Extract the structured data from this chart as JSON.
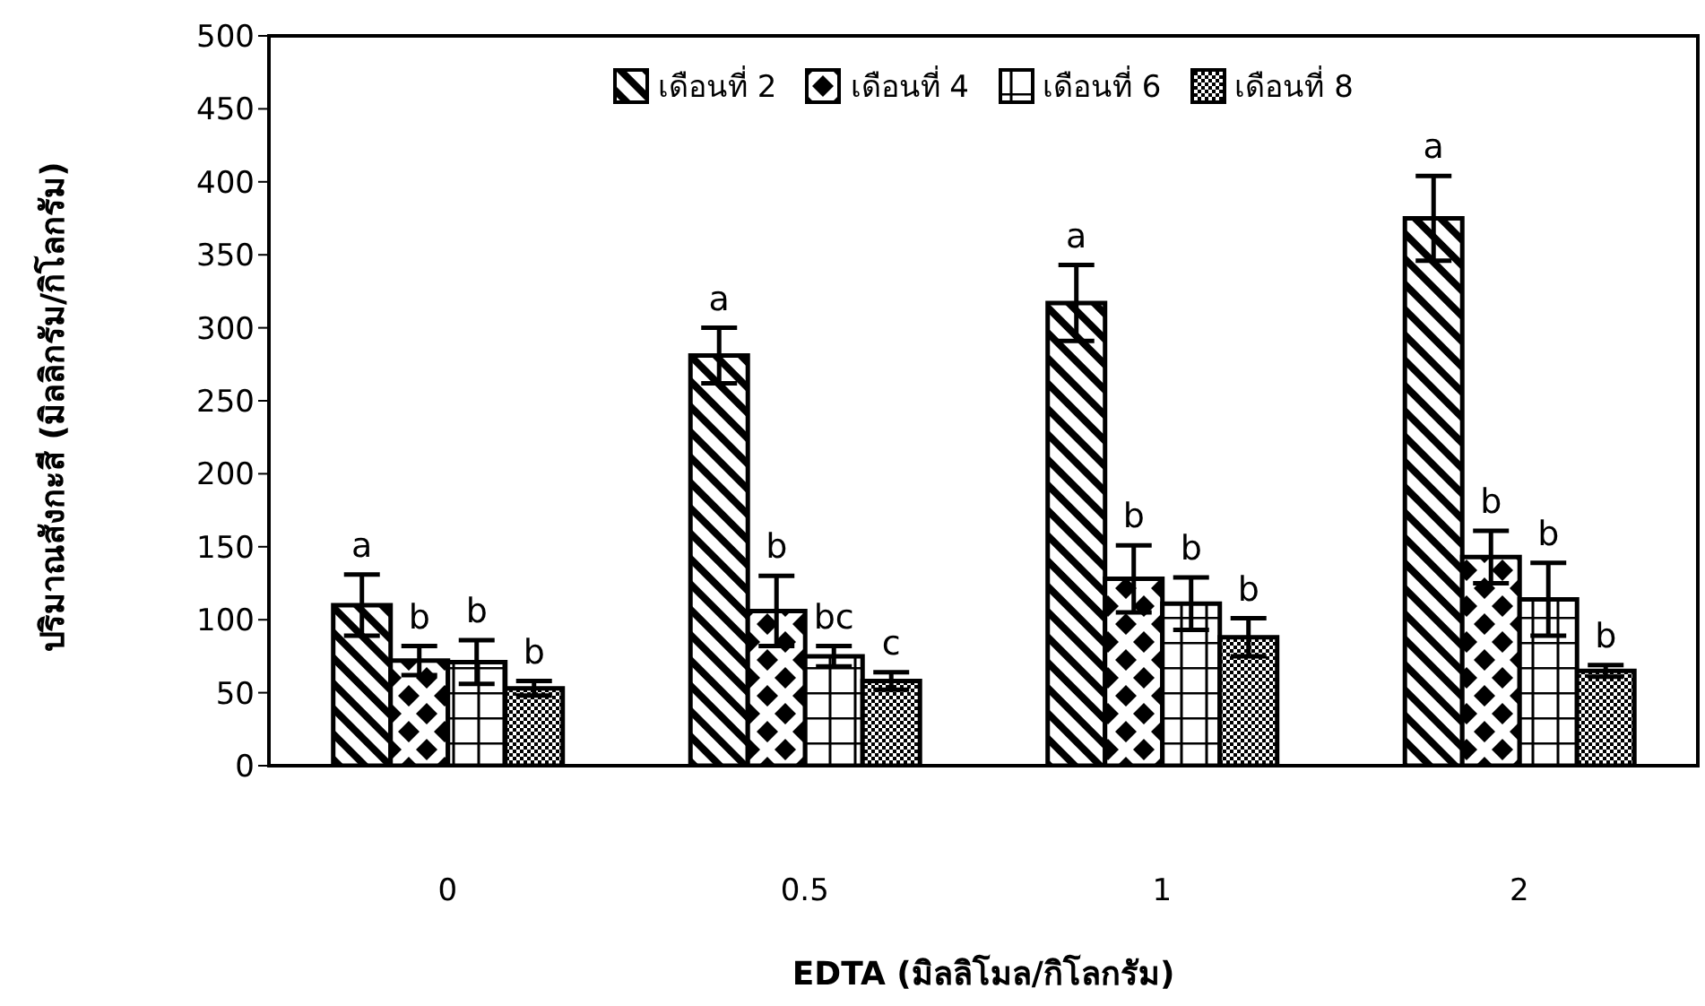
{
  "chart_data": {
    "type": "bar",
    "xlabel": "EDTA (มิลลิโมล/กิโลกรัม)",
    "ylabel": "ปริมาณสังกะสี (มิลลิกรัม/กิโลกรัม)",
    "categories": [
      "0",
      "0.5",
      "1",
      "2"
    ],
    "series": [
      {
        "name": "เดือนที่ 2",
        "color": "#000000",
        "values": [
          110,
          281,
          317,
          375
        ],
        "errors": [
          21,
          19,
          26,
          29
        ],
        "value_labels": [
          "a",
          "a",
          "a",
          "a"
        ]
      },
      {
        "name": "เดือนที่ 4",
        "color": "#000000",
        "values": [
          72,
          106,
          128,
          143
        ],
        "errors": [
          10,
          24,
          23,
          18
        ],
        "value_labels": [
          "b",
          "b",
          "b",
          "b"
        ]
      },
      {
        "name": "เดือนที่ 6",
        "color": "#000000",
        "values": [
          71,
          75,
          111,
          114
        ],
        "errors": [
          15,
          7,
          18,
          25
        ],
        "value_labels": [
          "b",
          "bc",
          "b",
          "b"
        ]
      },
      {
        "name": "เดือนที่ 8",
        "color": "#000000",
        "values": [
          53,
          58,
          88,
          65
        ],
        "errors": [
          5,
          6,
          13,
          4
        ],
        "value_labels": [
          "b",
          "c",
          "b",
          "b"
        ]
      }
    ],
    "ylim": [
      0,
      500
    ],
    "yticks": [
      0,
      50,
      100,
      150,
      200,
      250,
      300,
      350,
      400,
      450,
      500
    ],
    "grid": false,
    "legend": "top"
  }
}
